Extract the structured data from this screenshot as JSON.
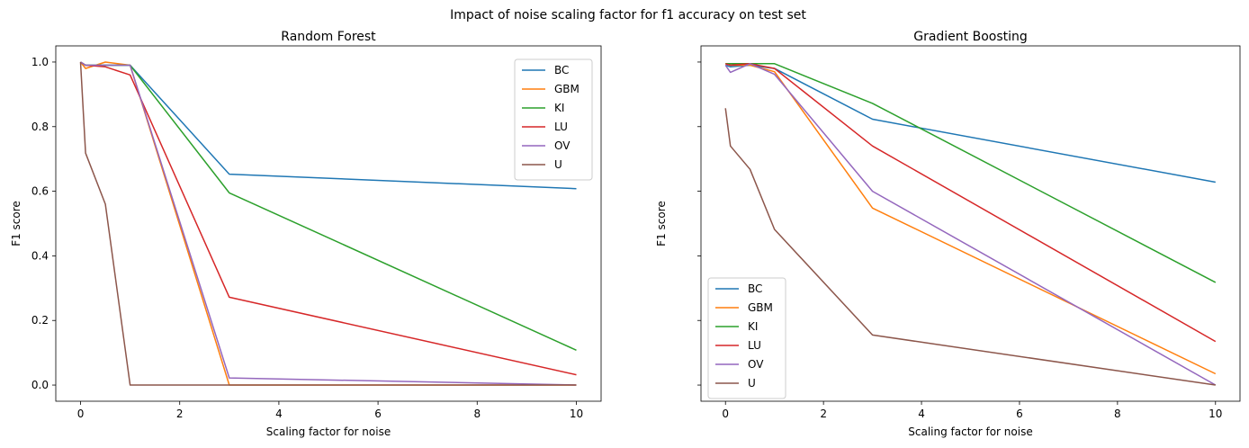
{
  "figure": {
    "suptitle": "Impact of noise scaling factor for f1 accuracy on test set"
  },
  "chart_data": [
    {
      "type": "line",
      "title": "Random Forest",
      "xlabel": "Scaling factor for noise",
      "ylabel": "F1 score",
      "xlim": [
        -0.5,
        10.5
      ],
      "ylim": [
        -0.05,
        1.05
      ],
      "xticks": [
        0,
        2,
        4,
        6,
        8,
        10
      ],
      "yticks": [
        0.0,
        0.2,
        0.4,
        0.6,
        0.8,
        1.0
      ],
      "ytick_labels": [
        "0.0",
        "0.2",
        "0.4",
        "0.6",
        "0.8",
        "1.0"
      ],
      "legend_position": "top-right",
      "grid": false,
      "series": [
        {
          "name": "BC",
          "color": "#1f77b4",
          "x": [
            0,
            0.1,
            0.5,
            1,
            3,
            10
          ],
          "y": [
            1.0,
            0.99,
            0.99,
            0.99,
            0.653,
            0.608
          ]
        },
        {
          "name": "GBM",
          "color": "#ff7f0e",
          "x": [
            0,
            0.1,
            0.5,
            1,
            3,
            10
          ],
          "y": [
            1.0,
            0.98,
            1.0,
            0.99,
            0.0,
            0.0
          ]
        },
        {
          "name": "KI",
          "color": "#2ca02c",
          "x": [
            0,
            0.1,
            0.5,
            1,
            3,
            10
          ],
          "y": [
            1.0,
            0.99,
            0.99,
            0.99,
            0.595,
            0.108
          ]
        },
        {
          "name": "LU",
          "color": "#d62728",
          "x": [
            0,
            0.1,
            0.5,
            1,
            3,
            10
          ],
          "y": [
            1.0,
            0.99,
            0.985,
            0.96,
            0.272,
            0.032
          ]
        },
        {
          "name": "OV",
          "color": "#9467bd",
          "x": [
            0,
            0.1,
            0.5,
            1,
            3,
            10
          ],
          "y": [
            1.0,
            0.99,
            0.99,
            0.99,
            0.022,
            0.0
          ]
        },
        {
          "name": "U",
          "color": "#8c564b",
          "x": [
            0,
            0.1,
            0.5,
            1,
            3,
            10
          ],
          "y": [
            1.0,
            0.718,
            0.56,
            0.0,
            0.0,
            0.0
          ]
        }
      ]
    },
    {
      "type": "line",
      "title": "Gradient Boosting",
      "xlabel": "Scaling factor for noise",
      "ylabel": "F1 score",
      "xlim": [
        -0.5,
        10.5
      ],
      "ylim": [
        -0.05,
        1.05
      ],
      "xticks": [
        0,
        2,
        4,
        6,
        8,
        10
      ],
      "yticks": [
        0.0,
        0.2,
        0.4,
        0.6,
        0.8,
        1.0
      ],
      "ytick_labels": [
        "",
        "",
        "",
        "",
        "",
        ""
      ],
      "legend_position": "lower-left",
      "grid": false,
      "series": [
        {
          "name": "BC",
          "color": "#1f77b4",
          "x": [
            0,
            0.1,
            0.5,
            1,
            3,
            10
          ],
          "y": [
            0.99,
            0.985,
            0.99,
            0.98,
            0.823,
            0.628
          ]
        },
        {
          "name": "GBM",
          "color": "#ff7f0e",
          "x": [
            0,
            0.1,
            0.5,
            1,
            3,
            10
          ],
          "y": [
            0.995,
            0.99,
            0.99,
            0.97,
            0.548,
            0.035
          ]
        },
        {
          "name": "KI",
          "color": "#2ca02c",
          "x": [
            0,
            0.1,
            0.5,
            1,
            3,
            10
          ],
          "y": [
            0.995,
            0.995,
            0.995,
            0.995,
            0.872,
            0.318
          ]
        },
        {
          "name": "LU",
          "color": "#d62728",
          "x": [
            0,
            0.1,
            0.5,
            1,
            3,
            10
          ],
          "y": [
            0.995,
            0.99,
            0.995,
            0.98,
            0.74,
            0.135
          ]
        },
        {
          "name": "OV",
          "color": "#9467bd",
          "x": [
            0,
            0.1,
            0.5,
            1,
            3,
            10
          ],
          "y": [
            0.99,
            0.968,
            0.995,
            0.962,
            0.6,
            0.0
          ]
        },
        {
          "name": "U",
          "color": "#8c564b",
          "x": [
            0,
            0.1,
            0.5,
            1,
            3,
            10
          ],
          "y": [
            0.857,
            0.74,
            0.668,
            0.482,
            0.155,
            0.0
          ]
        }
      ]
    }
  ]
}
